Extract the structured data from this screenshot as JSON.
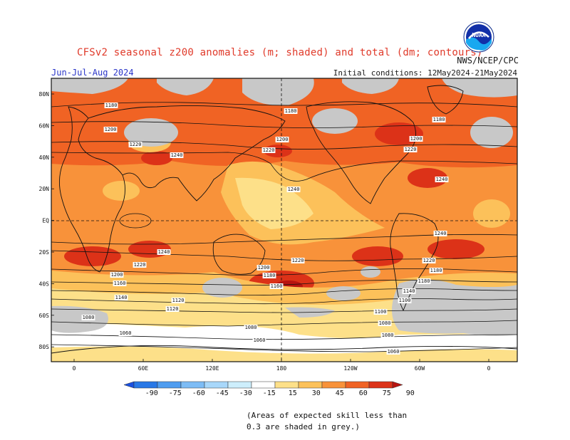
{
  "title": "CFSv2 seasonal z200 anomalies (m; shaded) and total (dm; contours)",
  "agency": "NWS/NCEP/CPC",
  "season": "Jun-Jul-Aug 2024",
  "initial_conditions": "Initial conditions: 12May2024-21May2024",
  "logo": {
    "text": "NOAA",
    "icon": "noaa-logo-icon"
  },
  "map": {
    "lat_labels": [
      "80N",
      "60N",
      "40N",
      "20N",
      "EQ",
      "20S",
      "40S",
      "60S",
      "80S"
    ],
    "lon_labels": [
      "0",
      "60E",
      "120E",
      "180",
      "120W",
      "60W",
      "0"
    ],
    "contour_labels": [
      "1180",
      "1180",
      "1180",
      "1200",
      "1200",
      "1200",
      "1220",
      "1220",
      "1220",
      "1240",
      "1240",
      "1240",
      "1240",
      "1240",
      "1220",
      "1220",
      "1220",
      "1200",
      "1200",
      "1180",
      "1180",
      "1180",
      "1160",
      "1160",
      "1140",
      "1140",
      "1120",
      "1100",
      "1120",
      "1100",
      "1080",
      "1080",
      "1080",
      "1060",
      "1080",
      "1060",
      "1060"
    ]
  },
  "colorbar": {
    "tick_labels": [
      "-90",
      "-75",
      "-60",
      "-45",
      "-30",
      "-15",
      "15",
      "30",
      "45",
      "60",
      "75",
      "90"
    ],
    "colors": [
      "#1a50e0",
      "#2878e6",
      "#4f9df0",
      "#7dbcf5",
      "#a8d7fa",
      "#cdeefc",
      "#ffffff",
      "#fde089",
      "#fcc15a",
      "#f8923a",
      "#f06324",
      "#dc3218",
      "#b81410"
    ]
  },
  "skill_note": "(Areas of expected skill less than 0.3 are shaded in grey.)"
}
